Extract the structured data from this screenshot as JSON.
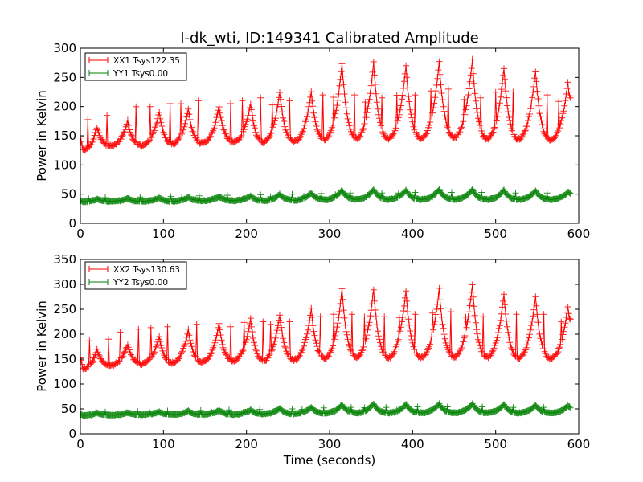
{
  "chart_data": [
    {
      "type": "line",
      "title": "I-dk_wti, ID:149341 Calibrated Amplitude",
      "xlabel": "",
      "ylabel": "Power in Kelvin",
      "xlim": [
        0,
        600
      ],
      "ylim": [
        0,
        300
      ],
      "xticks": [
        0,
        100,
        200,
        300,
        400,
        500,
        600
      ],
      "yticks": [
        0,
        50,
        100,
        150,
        200,
        250,
        300
      ],
      "xtick_labels": [
        "0",
        "100",
        "200",
        "300",
        "400",
        "500",
        "600"
      ],
      "ytick_labels": [
        "0",
        "50",
        "100",
        "150",
        "200",
        "250",
        "300"
      ],
      "grid": false,
      "legend_position": "top-left",
      "marker": "+",
      "x_range": [
        0,
        590
      ],
      "series": [
        {
          "name": "XX1 Tsys122.35",
          "color": "#ff0000",
          "peak_times": [
            20,
            57,
            95,
            130,
            167,
            205,
            240,
            278,
            315,
            353,
            392,
            432,
            472,
            510,
            548,
            587
          ],
          "peak_values": [
            165,
            175,
            190,
            195,
            200,
            205,
            225,
            225,
            275,
            275,
            270,
            275,
            280,
            265,
            260,
            240
          ],
          "trough_values": [
            125,
            128,
            128,
            130,
            130,
            132,
            130,
            130,
            132,
            130,
            130,
            130,
            132,
            130,
            130,
            130
          ],
          "end_value": 205,
          "spike_values": [
            185,
            200,
            205,
            210,
            205,
            215,
            210,
            220,
            220,
            215,
            220,
            230,
            215,
            225,
            220,
            215
          ]
        },
        {
          "name": "YY1 Tsys0.00",
          "color": "#008000",
          "peak_times": [
            20,
            57,
            95,
            130,
            167,
            205,
            240,
            278,
            315,
            353,
            392,
            432,
            472,
            510,
            548,
            587
          ],
          "peak_values": [
            42,
            43,
            44,
            45,
            46,
            47,
            50,
            52,
            57,
            58,
            57,
            58,
            58,
            57,
            56,
            54
          ],
          "trough_values": [
            37,
            37,
            37,
            37,
            38,
            38,
            38,
            38,
            39,
            39,
            39,
            39,
            39,
            39,
            39,
            39
          ],
          "end_value": 52,
          "spike_values": [
            44,
            45,
            46,
            47,
            48,
            49,
            50,
            51,
            52,
            52,
            53,
            53,
            53,
            52,
            52,
            51
          ]
        }
      ]
    },
    {
      "type": "line",
      "title": "",
      "xlabel": "Time (seconds)",
      "ylabel": "Power in Kelvin",
      "xlim": [
        0,
        600
      ],
      "ylim": [
        0,
        350
      ],
      "xticks": [
        0,
        100,
        200,
        300,
        400,
        500,
        600
      ],
      "yticks": [
        0,
        50,
        100,
        150,
        200,
        250,
        300,
        350
      ],
      "xtick_labels": [
        "0",
        "100",
        "200",
        "300",
        "400",
        "500",
        "600"
      ],
      "ytick_labels": [
        "0",
        "50",
        "100",
        "150",
        "200",
        "250",
        "300",
        "350"
      ],
      "grid": false,
      "legend_position": "top-left",
      "marker": "+",
      "x_range": [
        0,
        590
      ],
      "series": [
        {
          "name": "XX2 Tsys130.63",
          "color": "#ff0000",
          "peak_times": [
            20,
            57,
            95,
            130,
            167,
            205,
            240,
            278,
            315,
            353,
            392,
            432,
            472,
            510,
            548,
            587
          ],
          "peak_values": [
            170,
            180,
            195,
            210,
            220,
            230,
            240,
            250,
            290,
            290,
            285,
            290,
            300,
            280,
            275,
            255
          ],
          "trough_values": [
            130,
            133,
            135,
            135,
            135,
            137,
            137,
            137,
            138,
            138,
            137,
            137,
            138,
            137,
            137,
            137
          ],
          "end_value": 220,
          "spike_values": [
            190,
            210,
            215,
            220,
            215,
            225,
            225,
            235,
            240,
            235,
            240,
            245,
            235,
            240,
            240,
            230
          ]
        },
        {
          "name": "YY2 Tsys0.00",
          "color": "#008000",
          "peak_times": [
            20,
            57,
            95,
            130,
            167,
            205,
            240,
            278,
            315,
            353,
            392,
            432,
            472,
            510,
            548,
            587
          ],
          "peak_values": [
            42,
            43,
            44,
            46,
            47,
            48,
            51,
            53,
            59,
            60,
            59,
            60,
            60,
            59,
            58,
            56
          ],
          "trough_values": [
            37,
            37,
            38,
            38,
            38,
            38,
            39,
            39,
            40,
            40,
            40,
            40,
            40,
            40,
            40,
            40
          ],
          "end_value": 53,
          "spike_values": [
            44,
            45,
            46,
            47,
            48,
            49,
            50,
            52,
            53,
            53,
            54,
            54,
            54,
            53,
            53,
            52
          ]
        }
      ]
    }
  ]
}
